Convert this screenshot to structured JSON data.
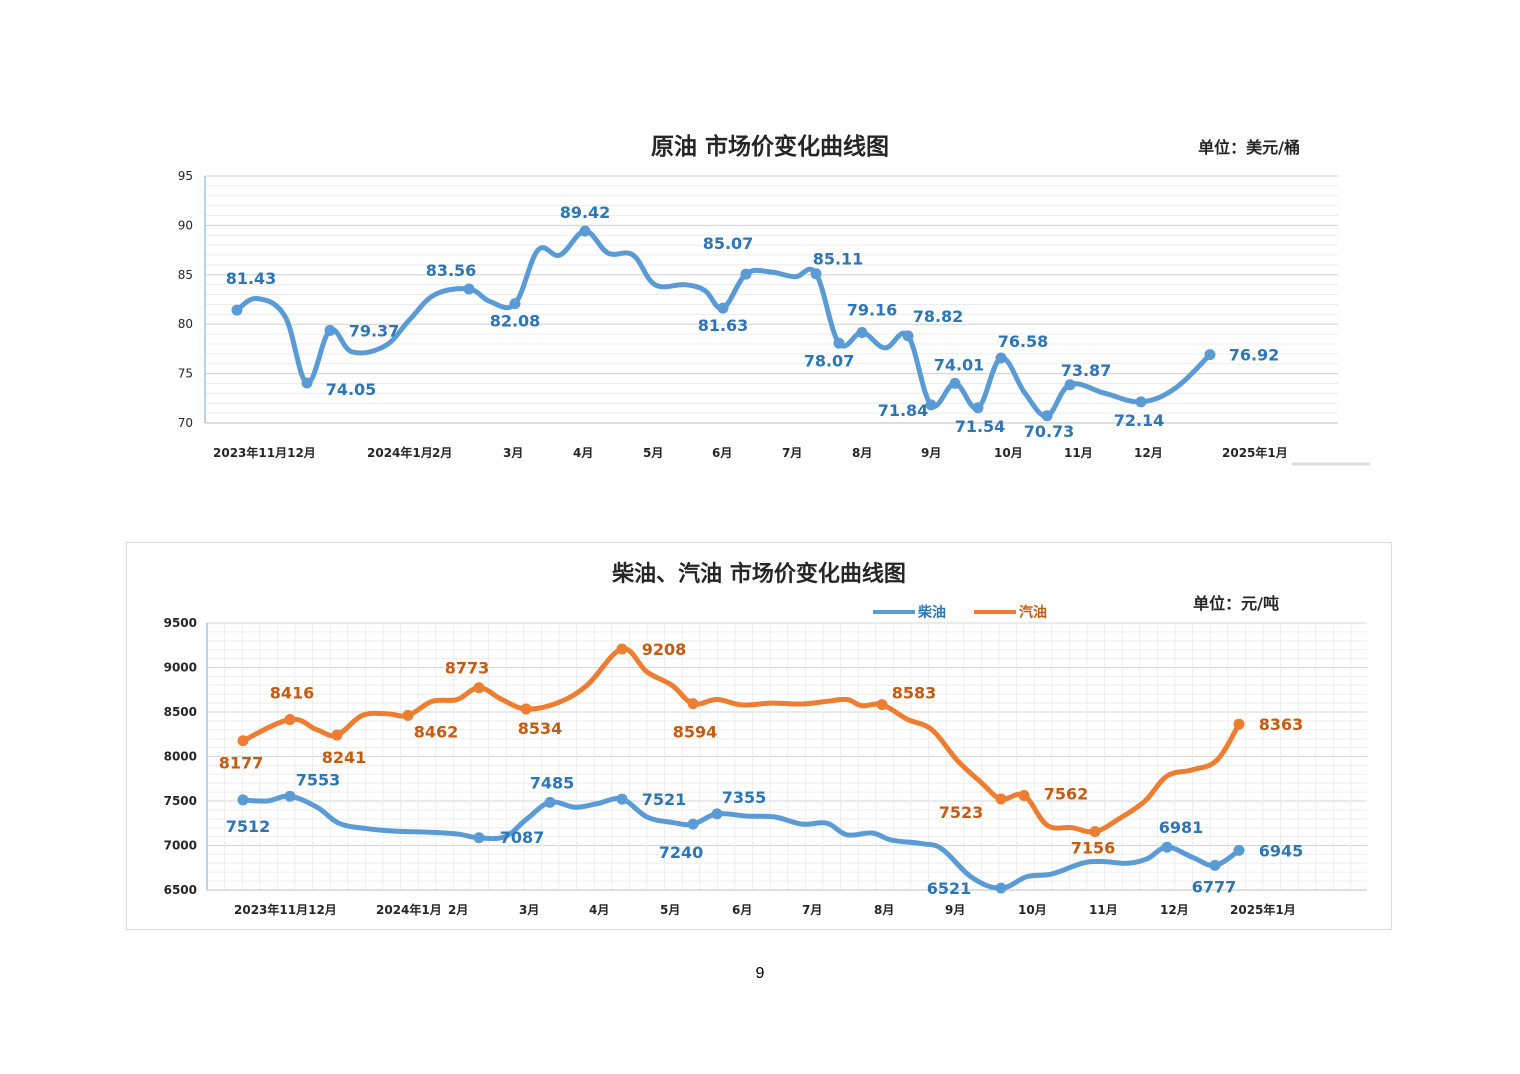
{
  "page_number": "9",
  "chart_data": [
    {
      "type": "line",
      "title": "原油 市场价变化曲线图",
      "unit": "单位：美元/桶",
      "ylim": [
        70,
        95
      ],
      "yticks": [
        70,
        75,
        80,
        85,
        90,
        95
      ],
      "grid": true,
      "x_labels": [
        "2023年11月12月",
        "2024年1月",
        "2月",
        "3月",
        "4月",
        "5月",
        "6月",
        "7月",
        "8月",
        "9月",
        "10月",
        "11月",
        "12月",
        "2025年1月"
      ],
      "color": "#5b9bd5",
      "label_color": "#2e75b6",
      "series": [
        {
          "values": [
            81.43,
            74.05,
            79.37,
            83.56,
            82.08,
            89.42,
            81.63,
            85.07,
            85.11,
            78.07,
            79.16,
            78.82,
            71.84,
            74.01,
            71.54,
            76.58,
            70.73,
            73.87,
            72.14,
            76.92
          ]
        }
      ]
    },
    {
      "type": "line",
      "title": "柴油、汽油 市场价变化曲线图",
      "unit": "单位：元/吨",
      "ylim": [
        6500,
        9500
      ],
      "yticks": [
        6500,
        7000,
        7500,
        8000,
        8500,
        9000,
        9500
      ],
      "grid": true,
      "legend": "top-right",
      "x_labels": [
        "2023年11月12月",
        "2024年1月",
        "2月",
        "3月",
        "4月",
        "5月",
        "6月",
        "7月",
        "8月",
        "9月",
        "10月",
        "11月",
        "12月",
        "2025年1月"
      ],
      "series": [
        {
          "name": "柴油",
          "color": "#5b9bd5",
          "label_color": "#2e75b6",
          "values": [
            7512,
            7553,
            7087,
            7485,
            7521,
            7240,
            7355,
            6521,
            6981,
            6777,
            6945
          ]
        },
        {
          "name": "汽油",
          "color": "#ed7d31",
          "label_color": "#c55a11",
          "values": [
            8177,
            8416,
            8241,
            8462,
            8773,
            8534,
            9208,
            8594,
            8583,
            7523,
            7562,
            7156,
            8363
          ]
        }
      ]
    }
  ]
}
